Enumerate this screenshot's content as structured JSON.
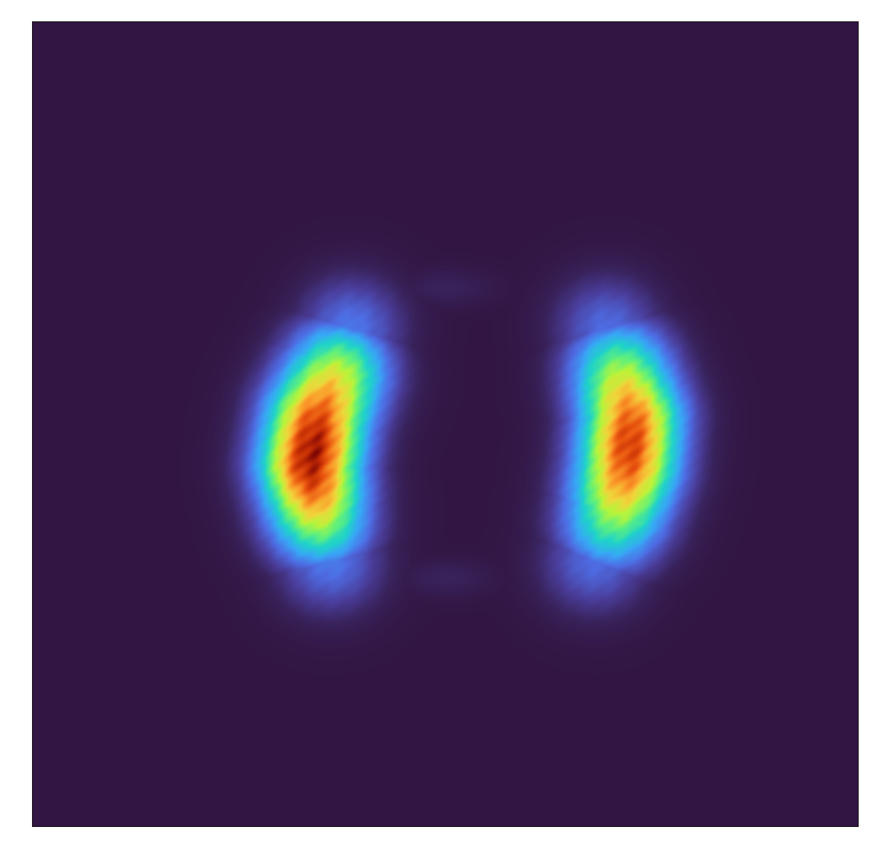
{
  "chart_data": {
    "type": "heatmap",
    "title": "",
    "xlabel": "",
    "ylabel": "",
    "xticks": [],
    "yticks": [],
    "xlim": [
      0,
      1
    ],
    "ylim": [
      0,
      1
    ],
    "grid": false,
    "legend": "none",
    "colormap": "turbo",
    "background_color": "#321542",
    "frame_color": "#111111",
    "colormap_stops": [
      {
        "v": 0.0,
        "color": "#321542"
      },
      {
        "v": 0.06,
        "color": "#38225a"
      },
      {
        "v": 0.14,
        "color": "#4a3d9a"
      },
      {
        "v": 0.24,
        "color": "#4e6ce3"
      },
      {
        "v": 0.34,
        "color": "#38a6f6"
      },
      {
        "v": 0.44,
        "color": "#1fd3c9"
      },
      {
        "v": 0.54,
        "color": "#5ff07c"
      },
      {
        "v": 0.63,
        "color": "#b9f43a"
      },
      {
        "v": 0.71,
        "color": "#f0d53b"
      },
      {
        "v": 0.79,
        "color": "#fb9a2a"
      },
      {
        "v": 0.87,
        "color": "#e8530f"
      },
      {
        "v": 0.94,
        "color": "#bf2a04"
      },
      {
        "v": 1.0,
        "color": "#7a0403"
      }
    ],
    "density_regions": [
      {
        "name": "left-crescent",
        "ridge": [
          [
            0.385,
            0.62
          ],
          [
            0.37,
            0.57
          ],
          [
            0.345,
            0.51
          ],
          [
            0.335,
            0.45
          ],
          [
            0.345,
            0.39
          ],
          [
            0.36,
            0.33
          ]
        ],
        "width": 0.046,
        "peak": 0.98,
        "peak_at": [
          0.335,
          0.45
        ]
      },
      {
        "name": "right-crescent",
        "ridge": [
          [
            0.695,
            0.62
          ],
          [
            0.71,
            0.57
          ],
          [
            0.725,
            0.51
          ],
          [
            0.72,
            0.45
          ],
          [
            0.705,
            0.39
          ],
          [
            0.68,
            0.33
          ]
        ],
        "width": 0.046,
        "peak": 0.9,
        "peak_at": [
          0.72,
          0.47
        ]
      }
    ]
  }
}
